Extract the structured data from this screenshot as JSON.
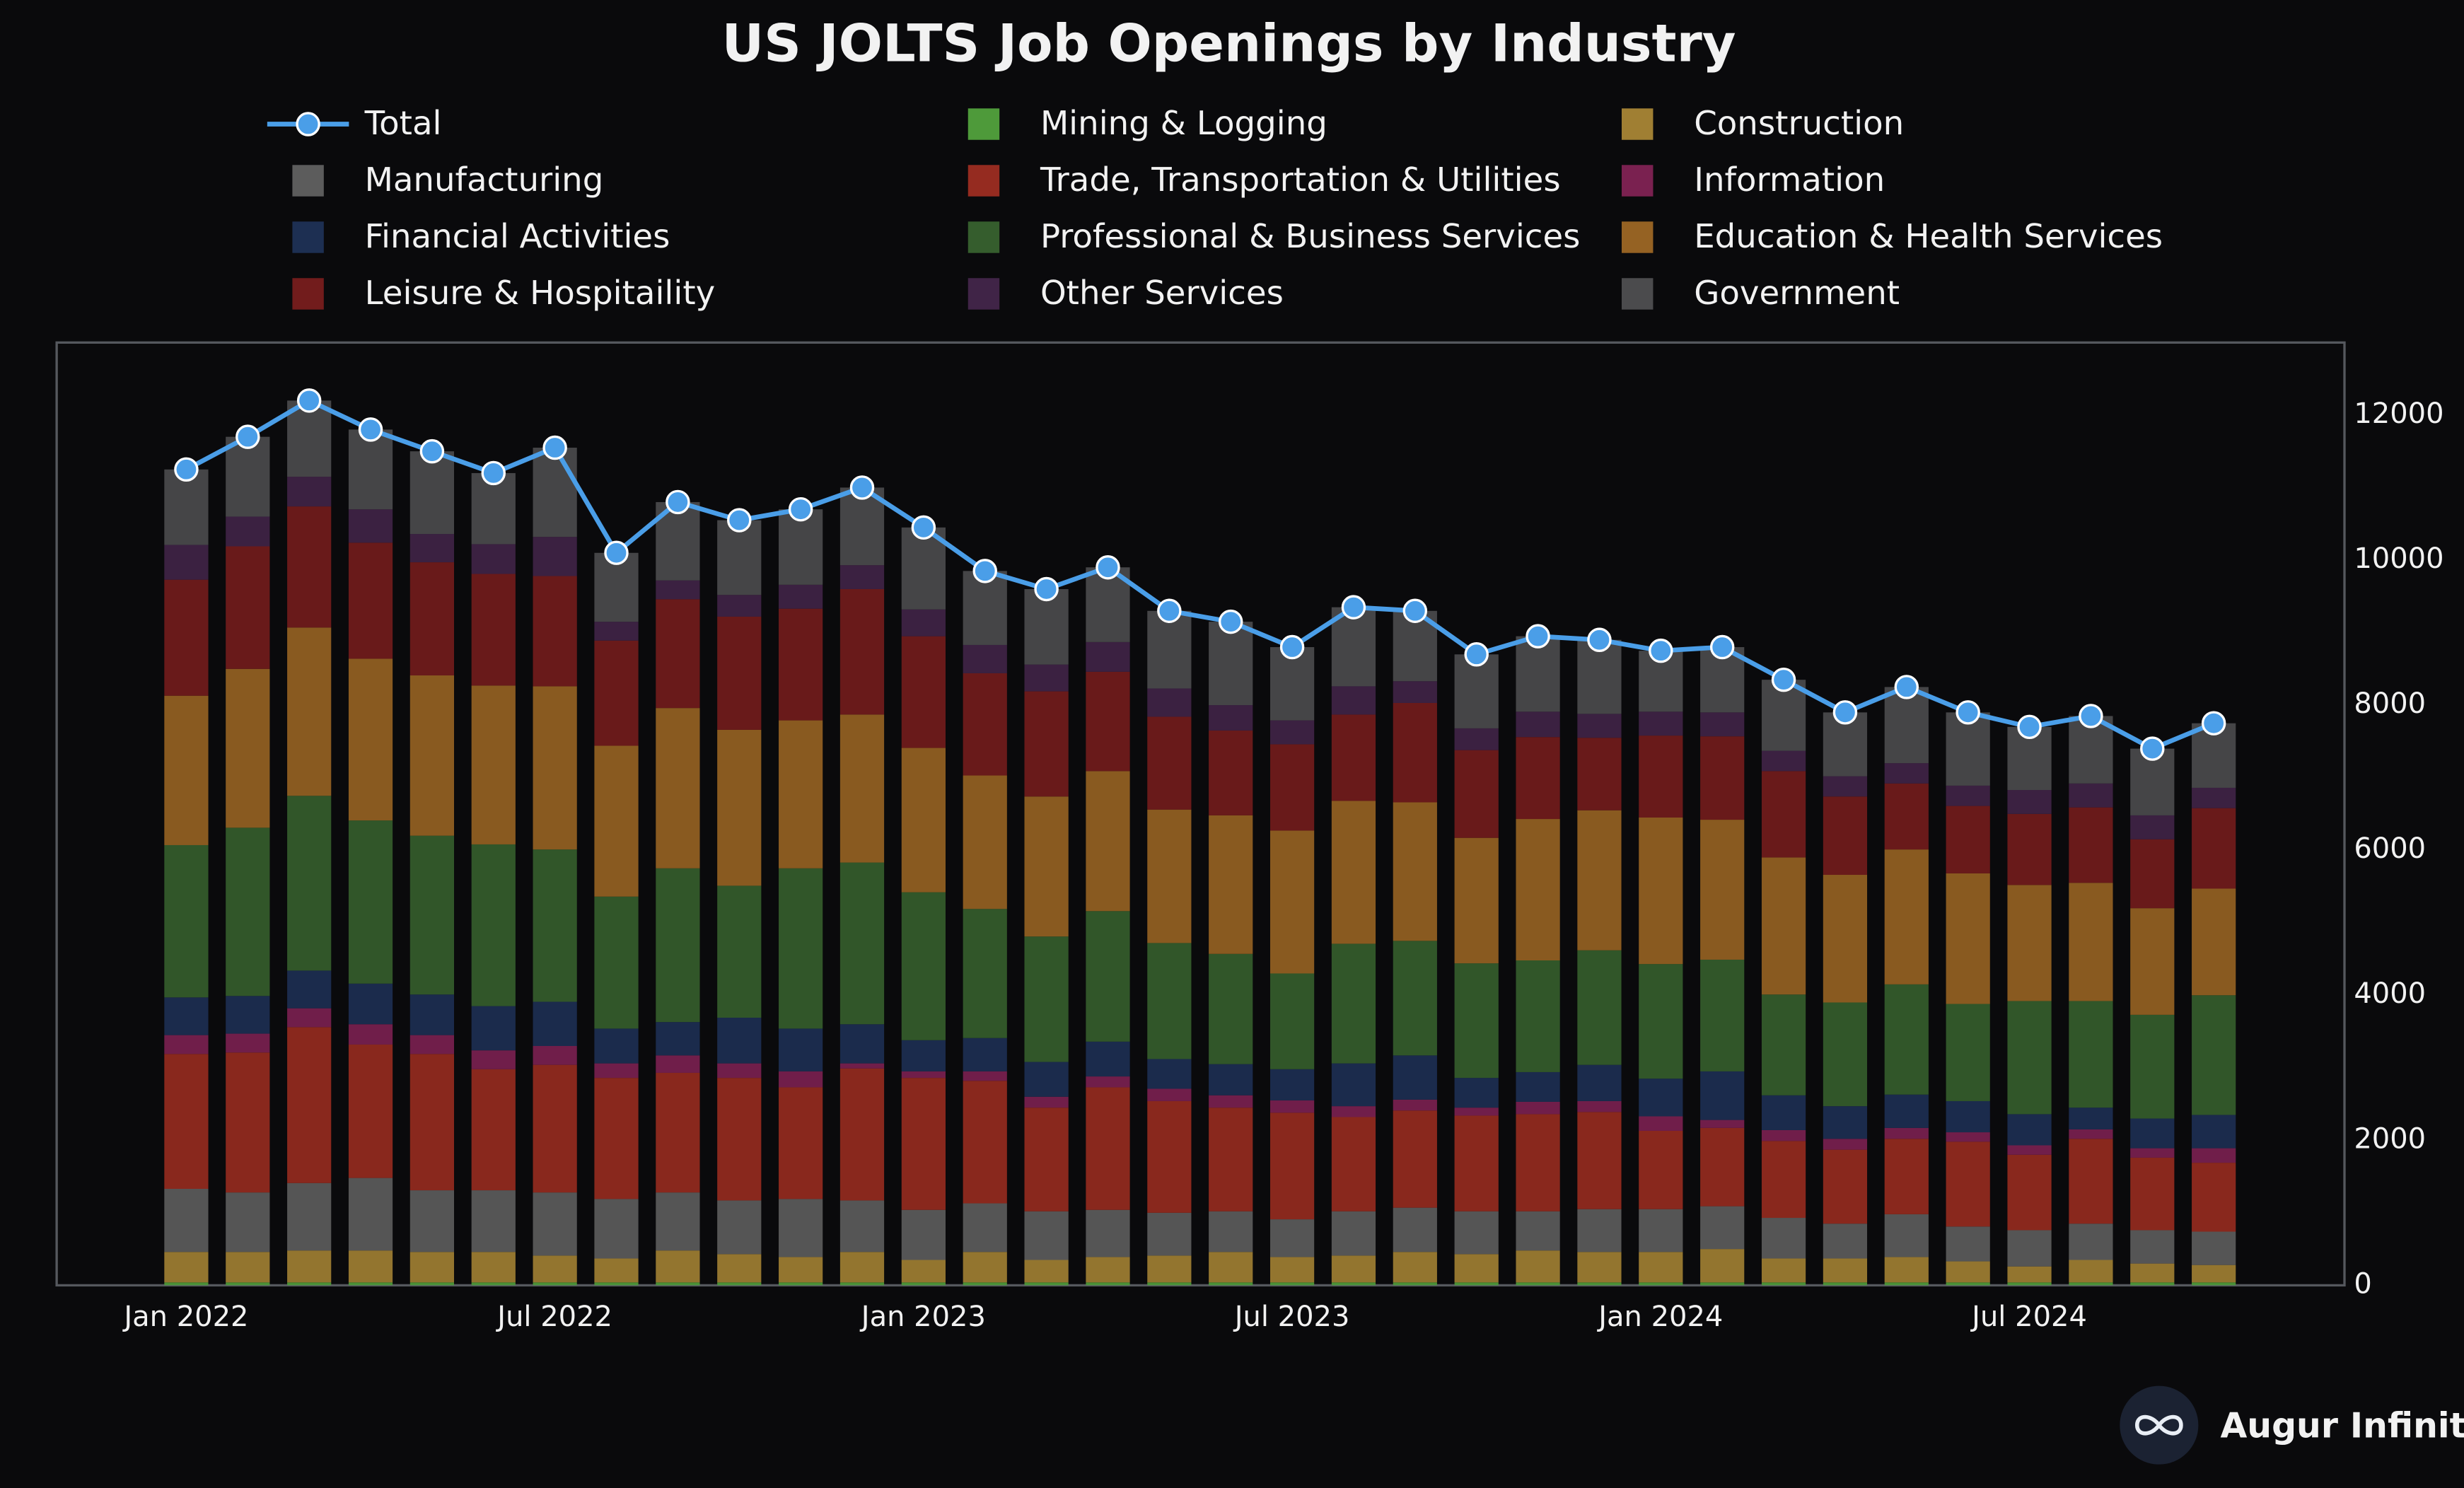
{
  "chart_data": {
    "type": "bar",
    "stacked": true,
    "title": "US JOLTS Job Openings by Industry",
    "watermark": "Augur Infinity",
    "categories": [
      "Jan 2022",
      null,
      null,
      null,
      null,
      null,
      "Jul 2022",
      null,
      null,
      null,
      null,
      null,
      "Jan 2023",
      null,
      null,
      null,
      null,
      null,
      "Jul 2023",
      null,
      null,
      null,
      null,
      null,
      "Jan 2024",
      null,
      null,
      null,
      null,
      null,
      "Jul 2024",
      null,
      null,
      null
    ],
    "ylim": [
      0,
      13000
    ],
    "yticks": [
      0,
      2000,
      4000,
      6000,
      8000,
      10000,
      12000
    ],
    "grid": false,
    "y_axis_side": "right",
    "legend_position": "top",
    "series": [
      {
        "name": "Total",
        "type": "line",
        "color": "#4a9ee8",
        "values": [
          11250,
          11700,
          12200,
          11800,
          11500,
          11200,
          11550,
          10100,
          10800,
          10550,
          10700,
          11000,
          10450,
          9850,
          9600,
          9900,
          9300,
          9150,
          8800,
          9350,
          9300,
          8700,
          8950,
          8900,
          8750,
          8800,
          8350,
          7900,
          8250,
          7900,
          7700,
          7850,
          7400,
          7750
        ]
      },
      {
        "name": "Mining & Logging",
        "color": "#4e9a3a",
        "values": [
          40,
          40,
          40,
          40,
          40,
          40,
          40,
          40,
          40,
          40,
          40,
          40,
          40,
          40,
          40,
          40,
          40,
          40,
          40,
          40,
          40,
          40,
          40,
          40,
          40,
          40,
          40,
          40,
          40,
          40,
          40,
          40,
          40,
          40
        ]
      },
      {
        "name": "Construction",
        "color": "#a07f33",
        "values": [
          420,
          420,
          440,
          440,
          420,
          420,
          370,
          330,
          440,
          390,
          350,
          420,
          310,
          420,
          310,
          350,
          370,
          420,
          350,
          370,
          420,
          390,
          440,
          420,
          420,
          460,
          330,
          330,
          350,
          290,
          220,
          310,
          260,
          240
        ]
      },
      {
        "name": "Manufacturing",
        "color": "#5c5c5c",
        "values": [
          870,
          820,
          930,
          1000,
          850,
          850,
          870,
          820,
          800,
          740,
          800,
          710,
          690,
          670,
          670,
          650,
          590,
          560,
          520,
          610,
          610,
          590,
          540,
          590,
          590,
          590,
          560,
          480,
          590,
          480,
          500,
          500,
          460,
          460
        ]
      },
      {
        "name": "Trade, Transportation & Utilities",
        "color": "#952b20",
        "values": [
          1860,
          1930,
          2150,
          1840,
          1880,
          1670,
          1760,
          1670,
          1650,
          1690,
          1540,
          1820,
          1820,
          1690,
          1430,
          1690,
          1540,
          1430,
          1470,
          1300,
          1340,
          1320,
          1340,
          1340,
          1080,
          1080,
          1060,
          1020,
          1040,
          1170,
          1040,
          1170,
          1000,
          950
        ]
      },
      {
        "name": "Information",
        "color": "#7a2150",
        "values": [
          260,
          260,
          260,
          280,
          260,
          260,
          260,
          200,
          240,
          200,
          220,
          70,
          90,
          130,
          150,
          150,
          170,
          170,
          170,
          150,
          150,
          110,
          170,
          150,
          200,
          110,
          150,
          150,
          150,
          130,
          130,
          130,
          130,
          200
        ]
      },
      {
        "name": "Financial Activities",
        "color": "#1d2f52",
        "values": [
          520,
          520,
          520,
          560,
          560,
          610,
          610,
          480,
          460,
          630,
          590,
          540,
          430,
          460,
          480,
          480,
          410,
          430,
          430,
          590,
          610,
          410,
          410,
          500,
          520,
          670,
          480,
          450,
          460,
          430,
          430,
          300,
          410,
          460
        ]
      },
      {
        "name": "Professional & Business Services",
        "color": "#355d2d",
        "values": [
          2100,
          2320,
          2410,
          2250,
          2190,
          2230,
          2100,
          1820,
          2120,
          1820,
          2210,
          2230,
          2040,
          1780,
          1730,
          1800,
          1600,
          1520,
          1320,
          1650,
          1580,
          1580,
          1540,
          1580,
          1580,
          1540,
          1390,
          1430,
          1520,
          1340,
          1560,
          1470,
          1430,
          1650
        ]
      },
      {
        "name": "Education & Health Services",
        "color": "#956223",
        "values": [
          2060,
          2190,
          2320,
          2230,
          2210,
          2190,
          2250,
          2080,
          2210,
          2150,
          2040,
          2040,
          1990,
          1840,
          1930,
          1930,
          1840,
          1910,
          1970,
          1970,
          1910,
          1730,
          1950,
          1930,
          2020,
          1930,
          1890,
          1760,
          1860,
          1800,
          1600,
          1630,
          1470,
          1470
        ]
      },
      {
        "name": "Leisure & Hospitaility",
        "color": "#721c1c",
        "values": [
          1600,
          1690,
          1670,
          1600,
          1560,
          1540,
          1520,
          1450,
          1500,
          1560,
          1540,
          1730,
          1540,
          1410,
          1450,
          1370,
          1280,
          1170,
          1190,
          1190,
          1370,
          1210,
          1130,
          1000,
          1130,
          1150,
          1190,
          1080,
          910,
          930,
          980,
          1040,
          950,
          1110
        ]
      },
      {
        "name": "Other Services",
        "color": "#402447",
        "values": [
          480,
          410,
          410,
          460,
          390,
          410,
          540,
          260,
          260,
          300,
          330,
          330,
          370,
          390,
          370,
          410,
          390,
          350,
          330,
          390,
          300,
          300,
          350,
          330,
          330,
          330,
          280,
          280,
          280,
          280,
          330,
          330,
          330,
          280
        ]
      },
      {
        "name": "Government",
        "color": "#4b4b4d",
        "values": [
          1040,
          1100,
          1050,
          1100,
          1140,
          980,
          1230,
          950,
          1080,
          1030,
          1040,
          1070,
          1130,
          1020,
          1040,
          1030,
          1070,
          1150,
          1010,
          1090,
          970,
          1020,
          1040,
          1020,
          840,
          900,
          980,
          880,
          1050,
          1010,
          870,
          930,
          920,
          890
        ]
      }
    ]
  }
}
